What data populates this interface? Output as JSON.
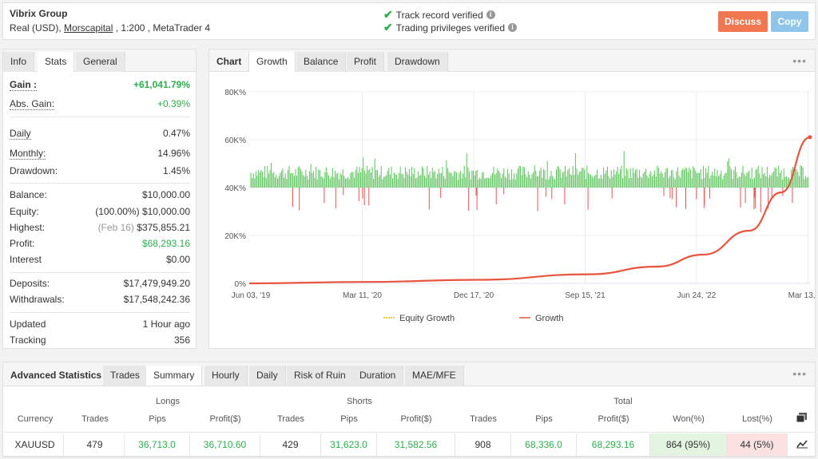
{
  "header": {
    "name": "Vibrix Group",
    "account_type": "Real (USD),",
    "broker": "Morscapital",
    "leverage_platform": ", 1:200 , MetaTrader 4",
    "verified_track": "Track record verified",
    "verified_trading": "Trading privileges verified",
    "discuss": "Discuss",
    "copy": "Copy"
  },
  "left_tabs": [
    "Info",
    "Stats",
    "General"
  ],
  "stats": {
    "gain_label": "Gain :",
    "gain": "+61,041.79%",
    "abs_gain_label": "Abs. Gain:",
    "abs_gain": "+0.39%",
    "daily_label": "Daily",
    "daily": "0.47%",
    "monthly_label": "Monthly:",
    "monthly": "14.96%",
    "drawdown_label": "Drawdown:",
    "drawdown": "1.45%",
    "balance_label": "Balance:",
    "balance": "$10,000.00",
    "equity_label": "Equity:",
    "equity_pct": "(100.00%)",
    "equity": "$10,000.00",
    "highest_label": "Highest:",
    "highest_date": "(Feb 16)",
    "highest": "$375,855.21",
    "profit_label": "Profit:",
    "profit": "$68,293.16",
    "interest_label": "Interest",
    "interest": "$0.00",
    "deposits_label": "Deposits:",
    "deposits": "$17,479,949.20",
    "withdrawals_label": "Withdrawals:",
    "withdrawals": "$17,548,242.36",
    "updated_label": "Updated",
    "updated": "1 Hour ago",
    "tracking_label": "Tracking",
    "tracking": "356"
  },
  "chart_tabs": [
    "Chart",
    "Growth",
    "Balance",
    "Profit",
    "Drawdown"
  ],
  "chart_data": {
    "type": "line",
    "y_ticks": [
      "80K%",
      "60K%",
      "40K%",
      "20K%",
      "0%"
    ],
    "ylim": [
      0,
      80000
    ],
    "x_ticks": [
      "Jun 03, '19",
      "Mar 11, '20",
      "Dec 17, '20",
      "Sep 15, '21",
      "Jun 24, '22",
      "Mar 13, '23"
    ],
    "xlim": [
      "2019-06-03",
      "2023-03-13"
    ],
    "legend": [
      "Equity Growth",
      "Growth"
    ],
    "series": [
      {
        "name": "Growth",
        "color": "#e8553e",
        "x": [
          "2019-06-03",
          "2020-03-11",
          "2020-12-17",
          "2021-09-15",
          "2022-03-01",
          "2022-06-24",
          "2022-10-15",
          "2023-01-01",
          "2023-03-13"
        ],
        "y": [
          0,
          600,
          1500,
          3800,
          7000,
          12000,
          22000,
          38000,
          61042
        ]
      }
    ],
    "bars_note_color_positive": "#5cc35c",
    "bars_note_color_negative": "#e05555"
  },
  "adv": {
    "tabs": [
      "Advanced Statistics",
      "Trades",
      "Summary",
      "Hourly",
      "Daily",
      "Risk of Ruin",
      "Duration",
      "MAE/MFE"
    ],
    "group_longs": "Longs",
    "group_shorts": "Shorts",
    "group_total": "Total",
    "headers": [
      "Currency",
      "Trades",
      "Pips",
      "Profit($)",
      "Trades",
      "Pips",
      "Profit($)",
      "Trades",
      "Pips",
      "Profit($)",
      "Won(%)",
      "Lost(%)"
    ],
    "row": [
      "XAUUSD",
      "479",
      "36,713.0",
      "36,710.60",
      "429",
      "31,623.0",
      "31,582.56",
      "908",
      "68,336.0",
      "68,293.16",
      "864 (95%)",
      "44 (5%)"
    ]
  }
}
